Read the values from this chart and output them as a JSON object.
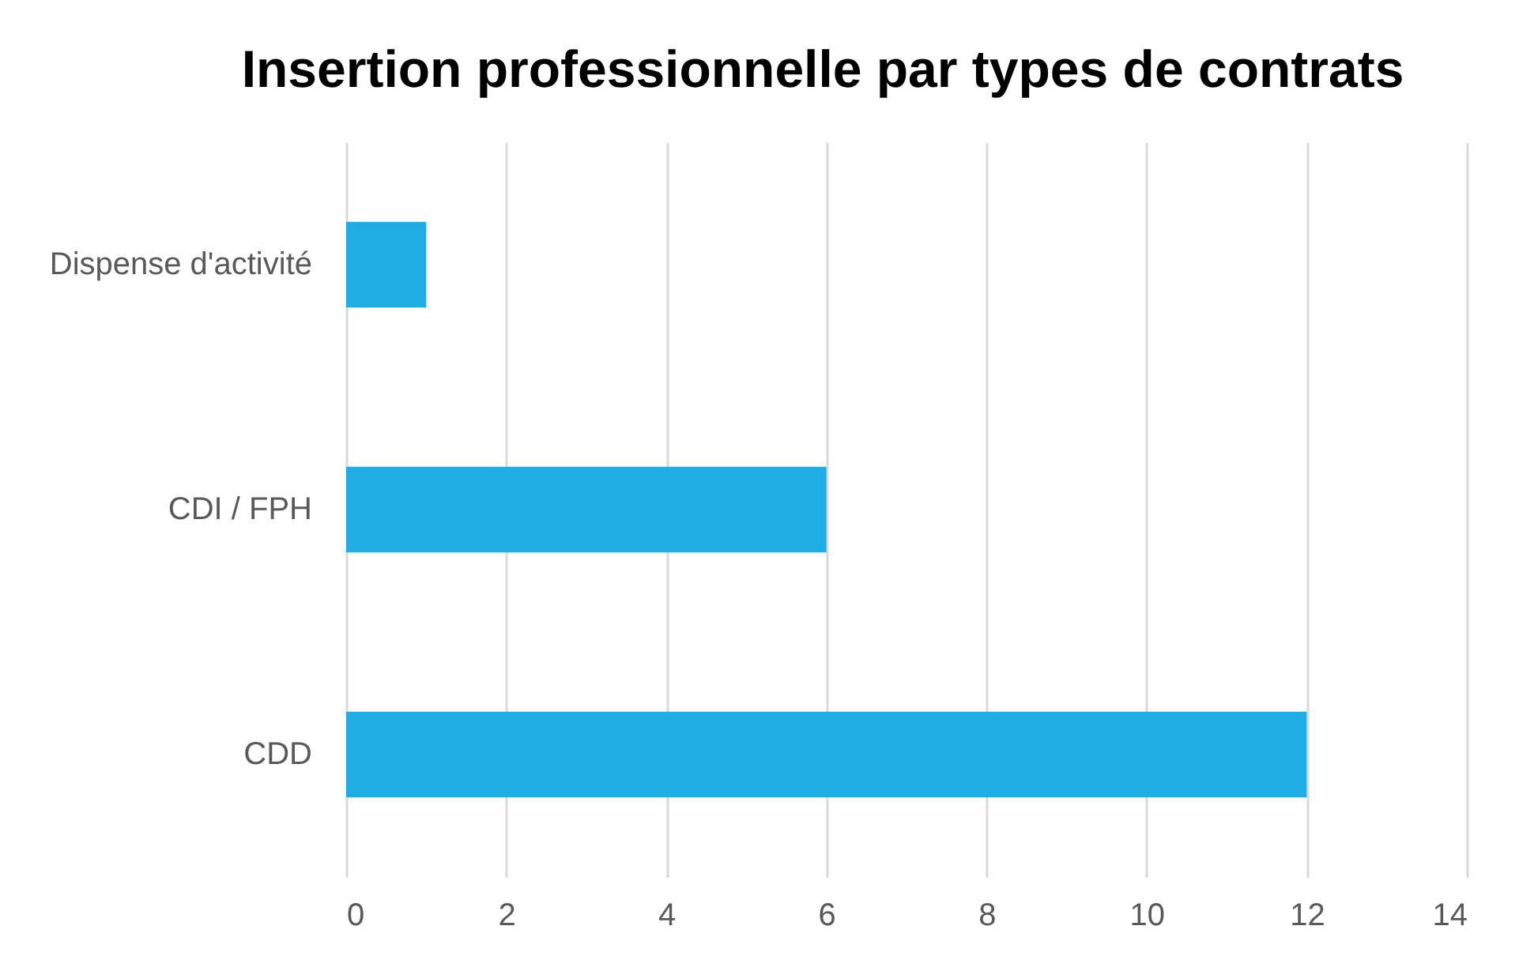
{
  "chart_data": {
    "type": "bar",
    "orientation": "horizontal",
    "title": "Insertion professionnelle par types de contrats",
    "categories": [
      "Dispense d'activité",
      "CDI / FPH",
      "CDD"
    ],
    "values": [
      1,
      6,
      12
    ],
    "color": "#1fade4",
    "xlim": [
      0,
      14
    ],
    "xticks": [
      0,
      2,
      4,
      6,
      8,
      10,
      12,
      14
    ],
    "grid": "x"
  }
}
